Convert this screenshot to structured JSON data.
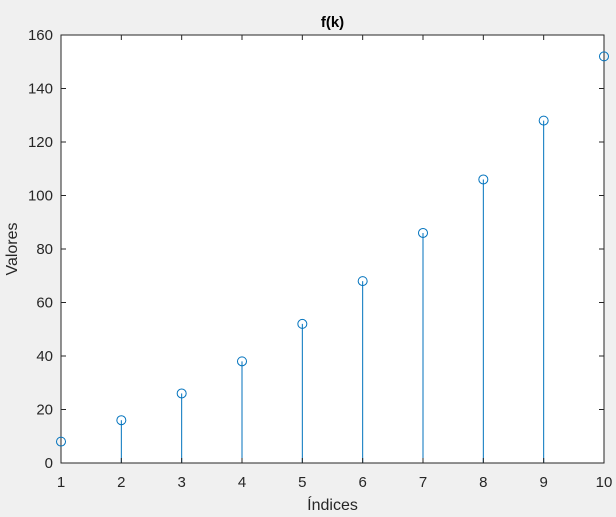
{
  "chart_data": {
    "type": "stem",
    "title": "f(k)",
    "xlabel": "Índices",
    "ylabel": "Valores",
    "xlim": [
      1,
      10
    ],
    "ylim": [
      0,
      160
    ],
    "x_ticks": [
      1,
      2,
      3,
      4,
      5,
      6,
      7,
      8,
      9,
      10
    ],
    "y_ticks": [
      0,
      20,
      40,
      60,
      80,
      100,
      120,
      140,
      160
    ],
    "x": [
      1,
      2,
      3,
      4,
      5,
      6,
      7,
      8,
      9,
      10
    ],
    "y": [
      8,
      16,
      26,
      38,
      52,
      68,
      86,
      106,
      128,
      152
    ],
    "grid": false,
    "legend": "none",
    "colors": {
      "series": "#0072bd",
      "axes": "#262626",
      "plot_background": "#ffffff",
      "figure_background": "#f0f0f0"
    }
  }
}
